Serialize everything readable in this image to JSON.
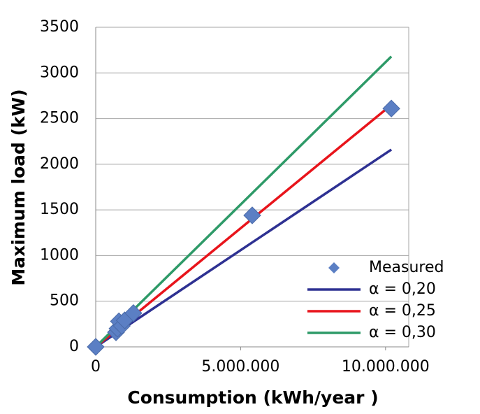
{
  "chart_data": {
    "type": "scatter",
    "xlabel": "Consumption (kWh/year )",
    "ylabel": "Maximum load  (kW)",
    "xlim": [
      0,
      10800000
    ],
    "ylim": [
      0,
      3500
    ],
    "xticks": [
      0,
      {
        "value": 5000000,
        "label": "5.000.000"
      },
      {
        "value": 10000000,
        "label": "10.000.000"
      }
    ],
    "yticks": [
      0,
      500,
      1000,
      1500,
      2000,
      2500,
      3000,
      3500
    ],
    "grid": true,
    "legend": "lower right",
    "series": [
      {
        "name": "Measured",
        "color": "#5b7fc4",
        "type": "scatter",
        "x": [
          0,
          700000,
          750000,
          800000,
          900000,
          1000000,
          1300000,
          5400000,
          10200000
        ],
        "values": [
          0,
          160,
          200,
          280,
          230,
          290,
          370,
          1440,
          2610
        ]
      },
      {
        "name": "α = 0,20",
        "color": "#2e3192",
        "type": "line",
        "x": [
          0,
          10200000
        ],
        "values": [
          0,
          2160
        ]
      },
      {
        "name": "α = 0,25",
        "color": "#e8141b",
        "type": "line",
        "x": [
          0,
          10200000
        ],
        "values": [
          0,
          2650
        ]
      },
      {
        "name": "α = 0,30",
        "color": "#2e9a68",
        "type": "line",
        "x": [
          0,
          10200000
        ],
        "values": [
          0,
          3180
        ]
      }
    ]
  }
}
